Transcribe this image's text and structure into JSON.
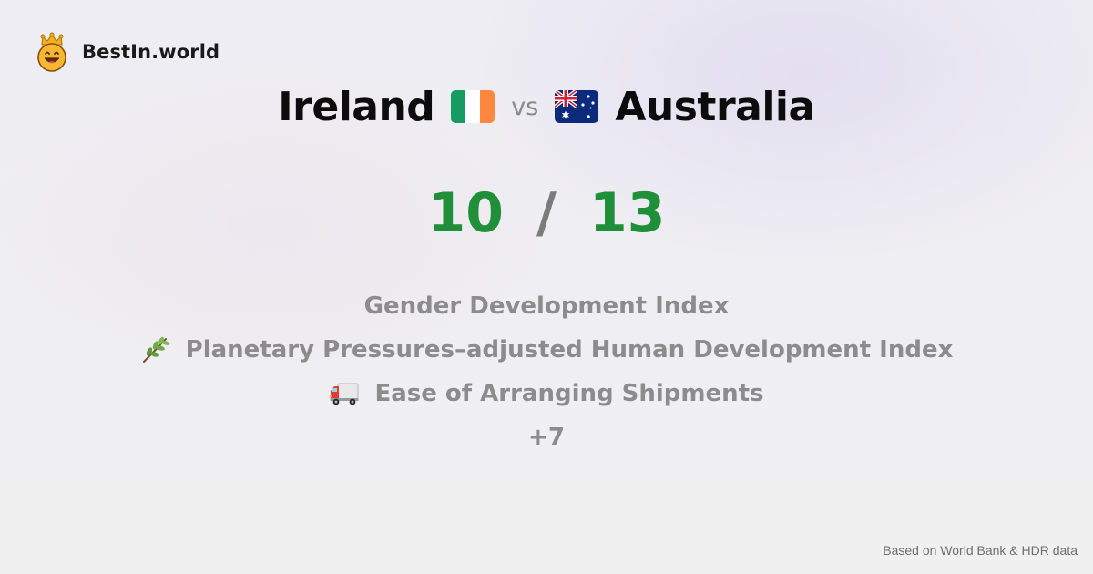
{
  "brand": {
    "name": "BestIn.world",
    "logo_icon": "crowned-smiley-icon"
  },
  "comparison": {
    "left": {
      "name": "Ireland",
      "flag_icon": "ireland-flag-icon",
      "score": "10"
    },
    "vs_label": "vs",
    "right": {
      "name": "Australia",
      "flag_icon": "australia-flag-icon",
      "score": "13"
    },
    "score_separator": "/"
  },
  "metrics": [
    {
      "label": "Gender Development Index",
      "icon": ""
    },
    {
      "label": "Planetary Pressures–adjusted Human Development Index",
      "icon": "herb-icon"
    },
    {
      "label": "Ease of Arranging Shipments",
      "icon": "delivery-truck-icon"
    }
  ],
  "more_label": "+7",
  "footer": {
    "source": "Based on World Bank & HDR data"
  },
  "colors": {
    "score_green": "#1f8f3a",
    "muted_text": "#8c8c8c"
  }
}
